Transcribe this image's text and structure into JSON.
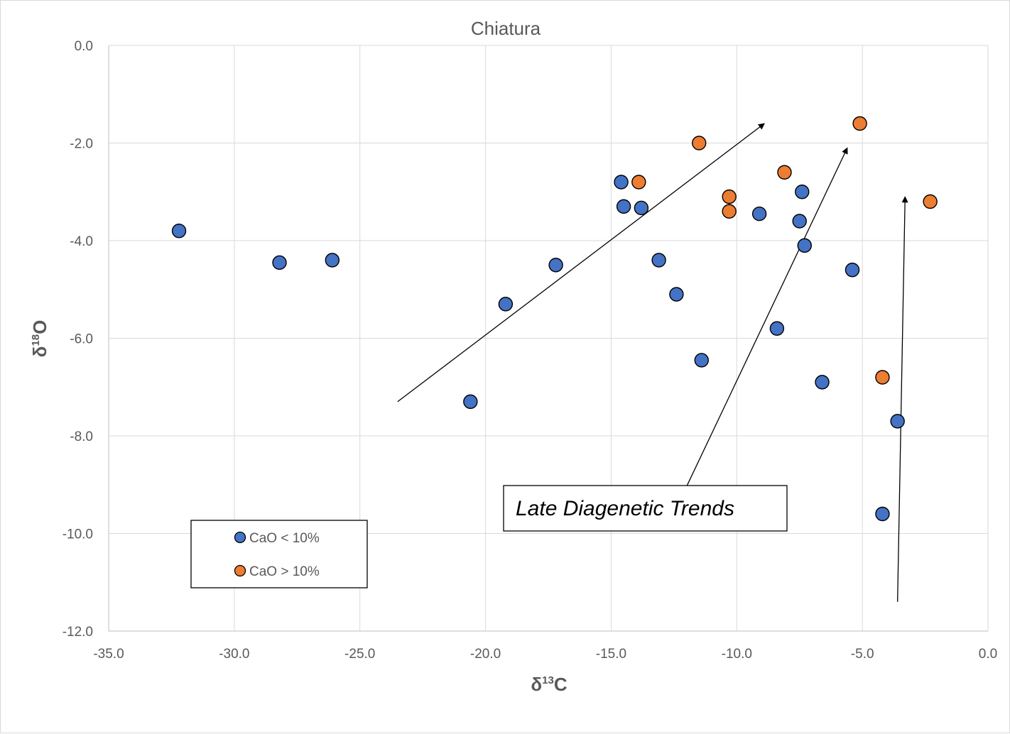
{
  "chart_data": {
    "type": "scatter",
    "title": "Chiatura",
    "xlabel": {
      "prefix": "δ",
      "sup": "13",
      "suffix": "C"
    },
    "ylabel": {
      "prefix": "δ",
      "sup": "18",
      "suffix": "O"
    },
    "xlim": [
      -35,
      0
    ],
    "ylim": [
      -12,
      0
    ],
    "xticks": [
      -35,
      -30,
      -25,
      -20,
      -15,
      -10,
      -5,
      0
    ],
    "yticks": [
      0,
      -2,
      -4,
      -6,
      -8,
      -10,
      -12
    ],
    "x_tick_labels": [
      "-35.0",
      "-30.0",
      "-25.0",
      "-20.0",
      "-15.0",
      "-10.0",
      "-5.0",
      "0.0"
    ],
    "y_tick_labels": [
      "0.0",
      "-2.0",
      "-4.0",
      "-6.0",
      "-8.0",
      "-10.0",
      "-12.0"
    ],
    "grid": true,
    "legend_position": "bottom-left",
    "series": [
      {
        "name": "CaO < 10%",
        "color": "#4472c4",
        "points": [
          [
            -32.2,
            -3.8
          ],
          [
            -28.2,
            -4.45
          ],
          [
            -26.1,
            -4.4
          ],
          [
            -20.6,
            -7.3
          ],
          [
            -19.2,
            -5.3
          ],
          [
            -17.2,
            -4.5
          ],
          [
            -14.6,
            -2.8
          ],
          [
            -14.5,
            -3.3
          ],
          [
            -13.8,
            -3.33
          ],
          [
            -13.1,
            -4.4
          ],
          [
            -12.4,
            -5.1
          ],
          [
            -11.4,
            -6.45
          ],
          [
            -9.1,
            -3.45
          ],
          [
            -8.4,
            -5.8
          ],
          [
            -7.5,
            -3.6
          ],
          [
            -7.4,
            -3.0
          ],
          [
            -7.3,
            -4.1
          ],
          [
            -6.6,
            -6.9
          ],
          [
            -5.4,
            -4.6
          ],
          [
            -3.6,
            -7.7
          ],
          [
            -4.2,
            -9.6
          ]
        ]
      },
      {
        "name": "CaO > 10%",
        "color": "#ed7d31",
        "points": [
          [
            -13.9,
            -2.8
          ],
          [
            -11.5,
            -2.0
          ],
          [
            -10.3,
            -3.1
          ],
          [
            -10.3,
            -3.4
          ],
          [
            -8.1,
            -2.6
          ],
          [
            -5.1,
            -1.6
          ],
          [
            -2.3,
            -3.2
          ],
          [
            -4.2,
            -6.8
          ]
        ]
      }
    ],
    "arrows": [
      {
        "from": [
          -23.5,
          -7.3
        ],
        "to": [
          -8.9,
          -1.6
        ]
      },
      {
        "from": [
          -12.1,
          -9.15
        ],
        "to": [
          -5.6,
          -2.1
        ]
      },
      {
        "from": [
          -3.6,
          -11.4
        ],
        "to": [
          -3.3,
          -3.1
        ]
      }
    ],
    "annotation": "Late Diagenetic Trends"
  }
}
